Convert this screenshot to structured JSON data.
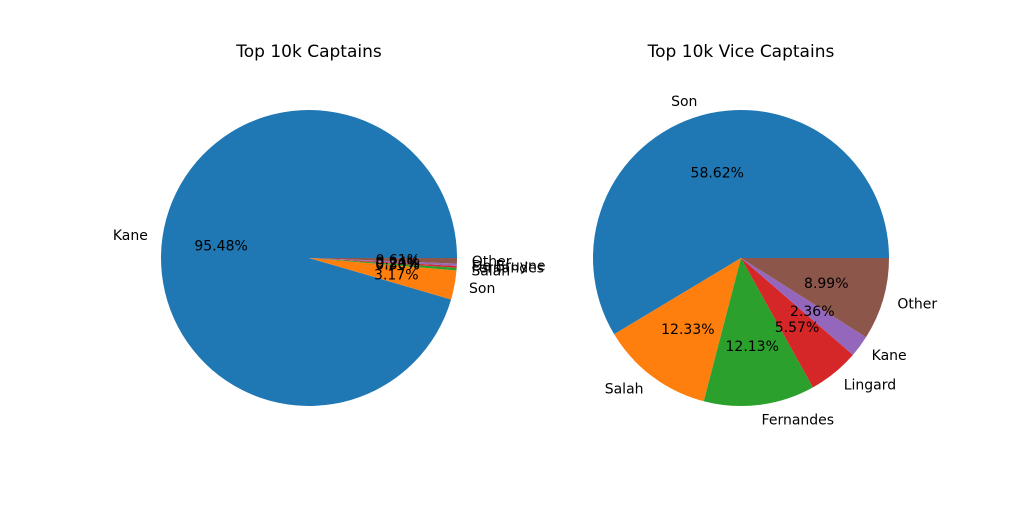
{
  "chart_data": [
    {
      "type": "pie",
      "title": "Top 10k Captains",
      "start_angle_deg": 0,
      "direction": "counterclockwise",
      "slices": [
        {
          "label": "Kane",
          "value": 95.48,
          "pct_label": "95.48%",
          "color": "#1f77b4"
        },
        {
          "label": "Son",
          "value": 3.17,
          "pct_label": "3.17%",
          "color": "#ff7f0e"
        },
        {
          "label": "Salah",
          "value": 0.3,
          "pct_label": "0.30%",
          "color": "#2ca02c"
        },
        {
          "label": "Fernandes",
          "value": 0.2,
          "pct_label": "0.20%",
          "color": "#d62728"
        },
        {
          "label": "De Bruyne",
          "value": 0.24,
          "pct_label": "0.24%",
          "color": "#9467bd"
        },
        {
          "label": "Other",
          "value": 0.61,
          "pct_label": "0.61%",
          "color": "#8c564b"
        }
      ]
    },
    {
      "type": "pie",
      "title": "Top 10k Vice Captains",
      "start_angle_deg": 0,
      "direction": "counterclockwise",
      "slices": [
        {
          "label": "Son",
          "value": 58.62,
          "pct_label": "58.62%",
          "color": "#1f77b4"
        },
        {
          "label": "Salah",
          "value": 12.33,
          "pct_label": "12.33%",
          "color": "#ff7f0e"
        },
        {
          "label": "Fernandes",
          "value": 12.13,
          "pct_label": "12.13%",
          "color": "#2ca02c"
        },
        {
          "label": "Lingard",
          "value": 5.57,
          "pct_label": "5.57%",
          "color": "#d62728"
        },
        {
          "label": "Kane",
          "value": 2.36,
          "pct_label": "2.36%",
          "color": "#9467bd"
        },
        {
          "label": "Other",
          "value": 8.99,
          "pct_label": "8.99%",
          "color": "#8c564b"
        }
      ]
    }
  ]
}
